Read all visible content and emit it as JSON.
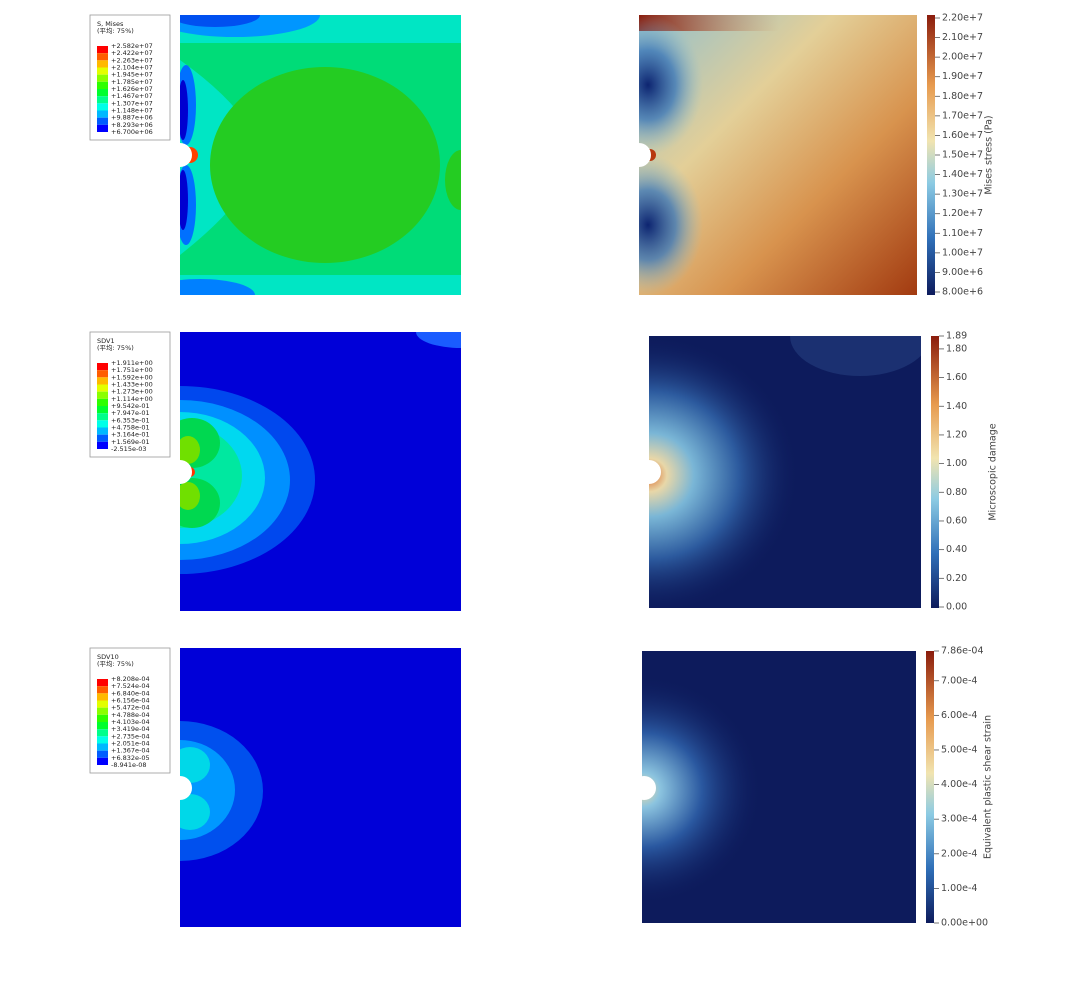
{
  "panels": [
    {
      "abaqus": {
        "title": "S, Mises",
        "subtitle": "(平均: 75%)",
        "levels": [
          "+2.582e+07",
          "+2.422e+07",
          "+2.263e+07",
          "+2.104e+07",
          "+1.945e+07",
          "+1.785e+07",
          "+1.626e+07",
          "+1.467e+07",
          "+1.307e+07",
          "+1.148e+07",
          "+9.887e+06",
          "+8.293e+06",
          "+6.700e+06"
        ]
      },
      "colorbar": {
        "title": "Mises stress (Pa)",
        "lim": [
          8000000,
          22000000
        ],
        "ticks": [
          {
            "value": 22000000,
            "label": "2.20e+7"
          },
          {
            "value": 21000000,
            "label": "2.10e+7"
          },
          {
            "value": 20000000,
            "label": "2.00e+7"
          },
          {
            "value": 19000000,
            "label": "1.90e+7"
          },
          {
            "value": 18000000,
            "label": "1.80e+7"
          },
          {
            "value": 17000000,
            "label": "1.70e+7"
          },
          {
            "value": 16000000,
            "label": "1.60e+7"
          },
          {
            "value": 15000000,
            "label": "1.50e+7"
          },
          {
            "value": 14000000,
            "label": "1.40e+7"
          },
          {
            "value": 13000000,
            "label": "1.30e+7"
          },
          {
            "value": 12000000,
            "label": "1.20e+7"
          },
          {
            "value": 11000000,
            "label": "1.10e+7"
          },
          {
            "value": 10000000,
            "label": "1.00e+7"
          },
          {
            "value": 9000000,
            "label": "9.00e+6"
          },
          {
            "value": 8000000,
            "label": "8.00e+6"
          }
        ]
      }
    },
    {
      "abaqus": {
        "title": "SDV1",
        "subtitle": "(平均: 75%)",
        "levels": [
          "+1.911e+00",
          "+1.751e+00",
          "+1.592e+00",
          "+1.433e+00",
          "+1.273e+00",
          "+1.114e+00",
          "+9.542e-01",
          "+7.947e-01",
          "+6.353e-01",
          "+4.758e-01",
          "+3.164e-01",
          "+1.569e-01",
          "-2.515e-03"
        ]
      },
      "colorbar": {
        "title": "Microscopic damage",
        "lim": [
          0,
          1.89
        ],
        "ticks": [
          {
            "value": 1.89,
            "label": "1.89"
          },
          {
            "value": 1.8,
            "label": "1.80"
          },
          {
            "value": 1.6,
            "label": "1.60"
          },
          {
            "value": 1.4,
            "label": "1.40"
          },
          {
            "value": 1.2,
            "label": "1.20"
          },
          {
            "value": 1,
            "label": "1.00"
          },
          {
            "value": 0.8,
            "label": "0.80"
          },
          {
            "value": 0.6,
            "label": "0.60"
          },
          {
            "value": 0.4,
            "label": "0.40"
          },
          {
            "value": 0.2,
            "label": "0.20"
          },
          {
            "value": 0,
            "label": "0.00"
          }
        ]
      }
    },
    {
      "abaqus": {
        "title": "SDV10",
        "subtitle": "(平均: 75%)",
        "levels": [
          "+8.208e-04",
          "+7.524e-04",
          "+6.840e-04",
          "+6.156e-04",
          "+5.472e-04",
          "+4.788e-04",
          "+4.103e-04",
          "+3.419e-04",
          "+2.735e-04",
          "+2.051e-04",
          "+1.367e-04",
          "+6.832e-05",
          "-8.941e-08"
        ]
      },
      "colorbar": {
        "title": "Equivalent plastic shear strain",
        "lim": [
          0,
          0.000786
        ],
        "ticks": [
          {
            "value": 0.000786,
            "label": "7.86e-04"
          },
          {
            "value": 0.0007,
            "label": "7.00e-4"
          },
          {
            "value": 0.0006,
            "label": "6.00e-4"
          },
          {
            "value": 0.0005,
            "label": "5.00e-4"
          },
          {
            "value": 0.0004,
            "label": "4.00e-4"
          },
          {
            "value": 0.0003,
            "label": "3.00e-4"
          },
          {
            "value": 0.0002,
            "label": "2.00e-4"
          },
          {
            "value": 0.0001,
            "label": "1.00e-4"
          },
          {
            "value": 0,
            "label": "0.00e+00"
          }
        ]
      }
    }
  ]
}
